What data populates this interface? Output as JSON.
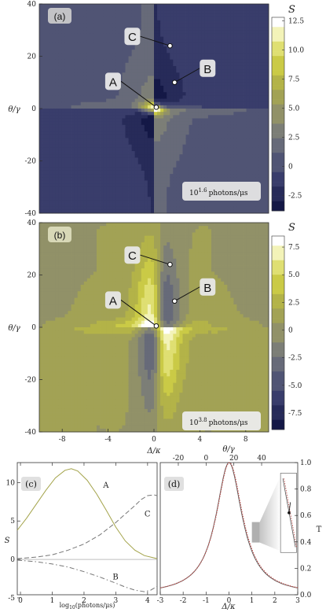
{
  "chart_data": [
    {
      "type": "heatmap",
      "panel": "(a)",
      "xlabel": "Δ/κ",
      "ylabel": "θ/γ",
      "xlim": [
        -10,
        10
      ],
      "ylim": [
        -40,
        40
      ],
      "x_ticks": [],
      "y_ticks": [
        "40",
        "20",
        "0",
        "-20",
        "-40"
      ],
      "y_tick_values": [
        40,
        20,
        0,
        -20,
        -40
      ],
      "colorbar_label": "S",
      "colorbar_ticks": [
        "12.5",
        "10.0",
        "7.5",
        "5.0",
        "2.5",
        "0",
        "-2.5"
      ],
      "colorbar_values": [
        12.5,
        10.0,
        7.5,
        5.0,
        2.5,
        0,
        -2.5
      ],
      "clim": [
        -3.8,
        12.8
      ],
      "annotation": "10^1.6 photons/μs",
      "annotation_base": "10",
      "annotation_exp": "1.6",
      "annotation_unit": "photons/μs",
      "points": [
        {
          "label": "A",
          "x": 0.2,
          "y": 0.5
        },
        {
          "label": "B",
          "x": 1.8,
          "y": 10
        },
        {
          "label": "C",
          "x": 1.4,
          "y": 24
        }
      ]
    },
    {
      "type": "heatmap",
      "panel": "(b)",
      "xlabel": "Δ/κ",
      "ylabel": "θ/γ",
      "xlim": [
        -10,
        10
      ],
      "ylim": [
        -40,
        40
      ],
      "x_ticks": [
        "-8",
        "-4",
        "0",
        "4",
        "8"
      ],
      "x_tick_values": [
        -8,
        -4,
        0,
        4,
        8
      ],
      "y_ticks": [
        "40",
        "20",
        "0",
        "-20",
        "-40"
      ],
      "y_tick_values": [
        40,
        20,
        0,
        -20,
        -40
      ],
      "colorbar_label": "S",
      "colorbar_ticks": [
        "7.5",
        "5.0",
        "2.5",
        "0",
        "-2.5",
        "-5.0",
        "-7.5"
      ],
      "colorbar_values": [
        7.5,
        5.0,
        2.5,
        0,
        -2.5,
        -5.0,
        -7.5
      ],
      "clim": [
        -9,
        8.5
      ],
      "annotation": "10^3.8 photons/μs",
      "annotation_base": "10",
      "annotation_exp": "3.8",
      "annotation_unit": "photons/μs",
      "points": [
        {
          "label": "A",
          "x": 0.2,
          "y": 0.5
        },
        {
          "label": "B",
          "x": 1.8,
          "y": 10
        },
        {
          "label": "C",
          "x": 1.4,
          "y": 24
        }
      ]
    },
    {
      "type": "line",
      "panel": "(c)",
      "xlabel": "log10(photons/μs)",
      "xlabel_pre": "log",
      "xlabel_sub": "10",
      "xlabel_post": "(photons/μs)",
      "ylabel": "S",
      "xlim": [
        -0.1,
        4.3
      ],
      "ylim": [
        -4.6,
        12.6
      ],
      "x_ticks": [
        "0",
        "1",
        "2",
        "3",
        "4"
      ],
      "x_tick_values": [
        0,
        1,
        2,
        3,
        4
      ],
      "y_ticks": [
        "10",
        "5",
        "0",
        "-5"
      ],
      "y_tick_values": [
        10,
        5,
        0,
        -5
      ],
      "series": [
        {
          "name": "A",
          "style": "solid",
          "color": "#a3a34a",
          "x": [
            -0.1,
            0.2,
            0.5,
            0.8,
            1.1,
            1.4,
            1.6,
            1.8,
            2.1,
            2.4,
            2.7,
            3.0,
            3.3,
            3.6,
            3.9,
            4.2,
            4.3
          ],
          "y": [
            3.8,
            5.4,
            7.2,
            9.0,
            10.6,
            11.6,
            11.8,
            11.5,
            10.3,
            8.5,
            6.4,
            4.2,
            2.4,
            1.2,
            0.5,
            0.2,
            0.1
          ]
        },
        {
          "name": "C",
          "style": "dashed",
          "color": "#777777",
          "x": [
            -0.1,
            0.5,
            1.0,
            1.5,
            2.0,
            2.5,
            3.0,
            3.3,
            3.6,
            3.8,
            4.0,
            4.2,
            4.3
          ],
          "y": [
            0.1,
            0.3,
            0.6,
            1.2,
            2.0,
            3.2,
            4.8,
            5.9,
            7.0,
            7.8,
            8.3,
            8.4,
            8.3
          ]
        },
        {
          "name": "B",
          "style": "dashdot",
          "color": "#777777",
          "x": [
            -0.1,
            0.5,
            1.0,
            1.5,
            2.0,
            2.5,
            3.0,
            3.3,
            3.6,
            3.9,
            4.1,
            4.3
          ],
          "y": [
            -0.1,
            -0.3,
            -0.6,
            -1.0,
            -1.6,
            -2.3,
            -3.1,
            -3.6,
            -4.0,
            -4.2,
            -4.0,
            -3.5
          ]
        }
      ]
    },
    {
      "type": "line",
      "panel": "(d)",
      "xlabel": "Δ/κ",
      "ylabel": "T",
      "top_xlabel": "θ/γ",
      "xlim": [
        -3,
        3
      ],
      "ylim": [
        0,
        1
      ],
      "x_ticks": [
        "-3",
        "-2",
        "-1",
        "0",
        "1",
        "2",
        "3"
      ],
      "x_tick_values": [
        -3,
        -2,
        -1,
        0,
        1,
        2,
        3
      ],
      "top_ticks": [
        "-20",
        "0",
        "20",
        "40"
      ],
      "top_tick_values": [
        -20,
        0,
        20,
        40
      ],
      "top_xlim": [
        -33,
        66
      ],
      "y_ticks": [
        "1.0",
        "0.8",
        "0.6",
        "0.4",
        "0.2",
        "0.0"
      ],
      "y_tick_values": [
        1.0,
        0.8,
        0.6,
        0.4,
        0.2,
        0.0
      ],
      "series": [
        {
          "style": "solid",
          "color": "#555555",
          "lorentz_center": 0,
          "lorentz_width": 0.7
        },
        {
          "style": "dotted",
          "color": "#c0504d",
          "lorentz_center": 0.02,
          "lorentz_width": 0.71
        }
      ]
    }
  ]
}
